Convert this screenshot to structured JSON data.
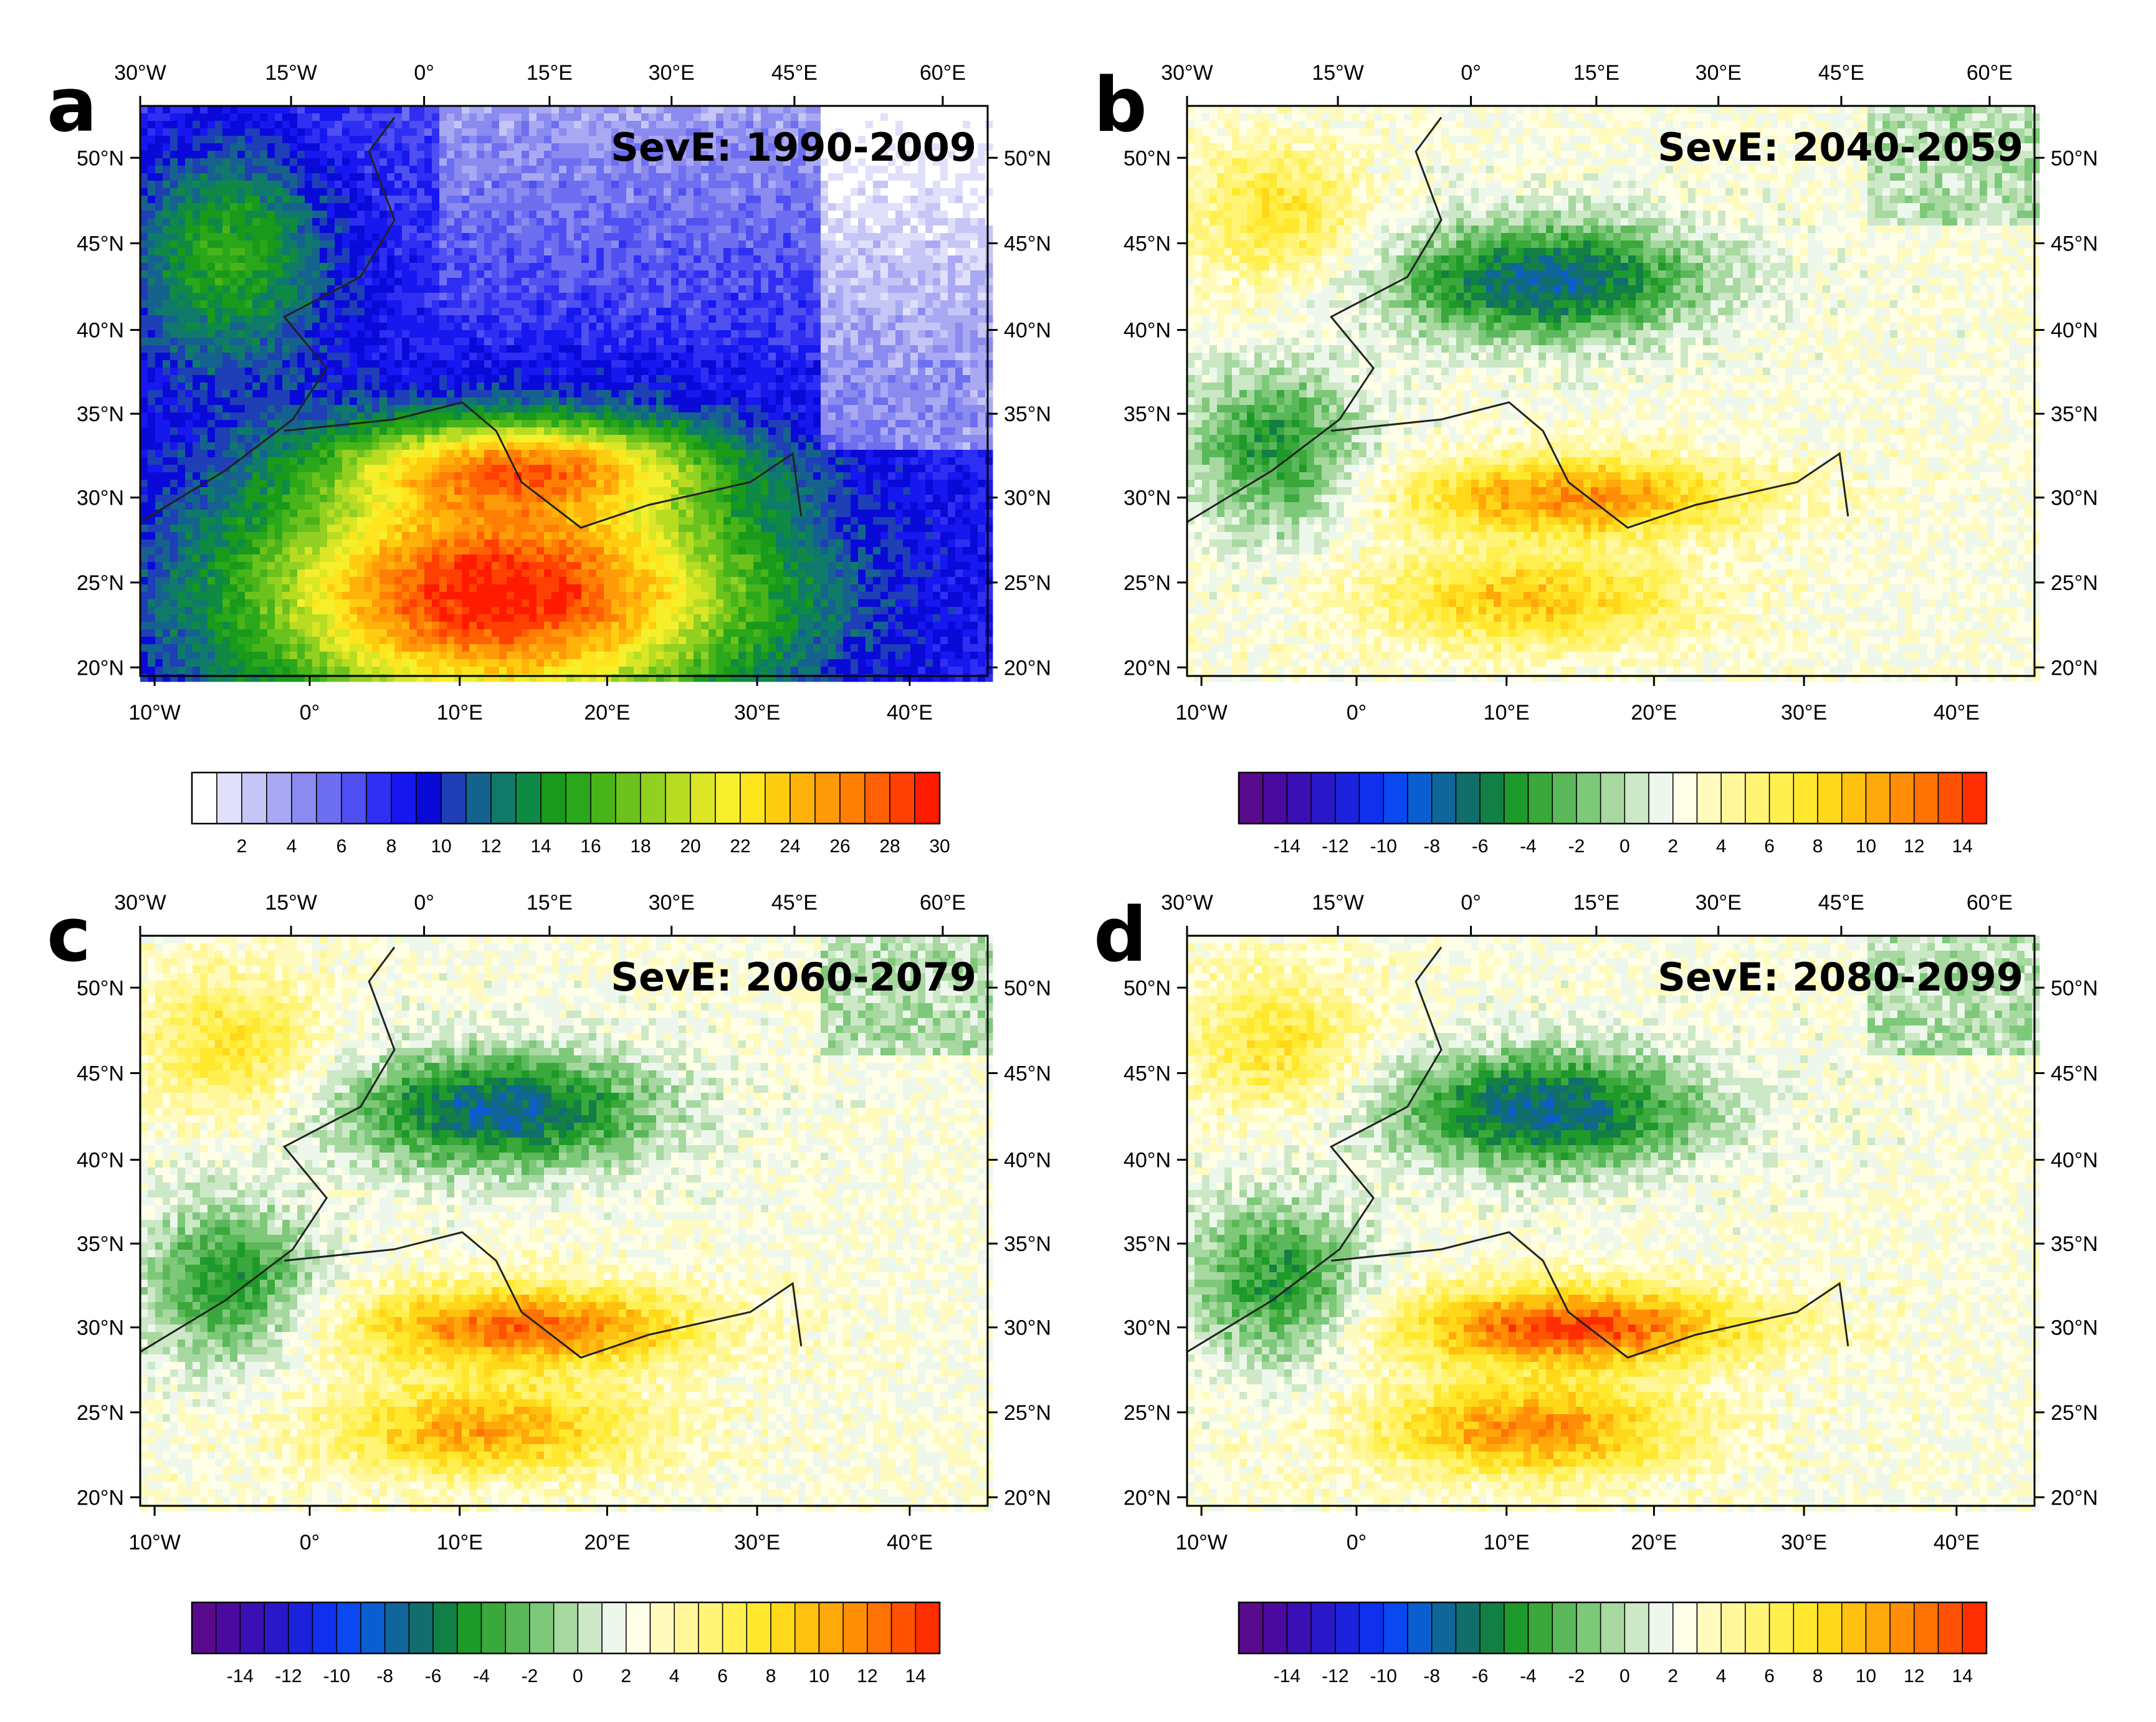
{
  "figure": {
    "panels": [
      {
        "letter": "a",
        "title": "SevE: 1990-2009",
        "colorbar": "abs",
        "top_lon_labels": [
          "30°W",
          "15°W",
          "0°",
          "15°E",
          "30°E",
          "45°E",
          "60°E"
        ],
        "lat_labels": [
          "50°N",
          "45°N",
          "40°N",
          "35°N",
          "30°N",
          "25°N",
          "20°N"
        ],
        "bottom_lon_labels": [
          "10°W",
          "0°",
          "10°E",
          "20°E",
          "30°E",
          "40°E"
        ]
      },
      {
        "letter": "b",
        "title": "SevE: 2040-2059",
        "colorbar": "diff",
        "top_lon_labels": [
          "30°W",
          "15°W",
          "0°",
          "15°E",
          "30°E",
          "45°E",
          "60°E"
        ],
        "lat_labels": [
          "50°N",
          "45°N",
          "40°N",
          "35°N",
          "30°N",
          "25°N",
          "20°N"
        ],
        "bottom_lon_labels": [
          "10°W",
          "0°",
          "10°E",
          "20°E",
          "30°E",
          "40°E"
        ]
      },
      {
        "letter": "c",
        "title": "SevE: 2060-2079",
        "colorbar": "diff",
        "top_lon_labels": [
          "30°W",
          "15°W",
          "0°",
          "15°E",
          "30°E",
          "45°E",
          "60°E"
        ],
        "lat_labels": [
          "50°N",
          "45°N",
          "40°N",
          "35°N",
          "30°N",
          "25°N",
          "20°N"
        ],
        "bottom_lon_labels": [
          "10°W",
          "0°",
          "10°E",
          "20°E",
          "30°E",
          "40°E"
        ]
      },
      {
        "letter": "d",
        "title": "SevE: 2080-2099",
        "colorbar": "diff",
        "top_lon_labels": [
          "30°W",
          "15°W",
          "0°",
          "15°E",
          "30°E",
          "45°E",
          "60°E"
        ],
        "lat_labels": [
          "50°N",
          "45°N",
          "40°N",
          "35°N",
          "30°N",
          "25°N",
          "20°N"
        ],
        "bottom_lon_labels": [
          "10°W",
          "0°",
          "10°E",
          "20°E",
          "30°E",
          "40°E"
        ]
      }
    ],
    "colorbar_abs": {
      "labels": [
        "2",
        "4",
        "6",
        "8",
        "10",
        "12",
        "14",
        "16",
        "18",
        "20",
        "22",
        "24",
        "26",
        "28",
        "30"
      ],
      "colors": [
        "#ffffff",
        "#e0e0fb",
        "#c6c6f6",
        "#a9a9f3",
        "#8a8aef",
        "#6e6ef0",
        "#4f4ff2",
        "#2f2ff3",
        "#1717f0",
        "#0a0ad8",
        "#1e3fb5",
        "#16628f",
        "#107a6a",
        "#0f8a45",
        "#1a9a1a",
        "#2aa71a",
        "#48b41a",
        "#6cc21c",
        "#92d021",
        "#b8dc22",
        "#dae626",
        "#f5f02b",
        "#ffe51e",
        "#ffcd10",
        "#ffb30a",
        "#ff9a08",
        "#ff7f05",
        "#ff6003",
        "#ff4002",
        "#ff1b00"
      ]
    },
    "colorbar_diff": {
      "labels": [
        "-14",
        "-12",
        "-10",
        "-8",
        "-6",
        "-4",
        "-2",
        "0",
        "2",
        "4",
        "6",
        "8",
        "10",
        "12",
        "14"
      ],
      "colors": [
        "#5a0a8c",
        "#4a0aa0",
        "#3a10b4",
        "#2a18c8",
        "#1a22dc",
        "#0f30ee",
        "#0a48f0",
        "#0a5ecf",
        "#10659a",
        "#126e6c",
        "#128044",
        "#1e9a2a",
        "#3aa83a",
        "#5ab85a",
        "#7ec87a",
        "#a6d8a0",
        "#cce8c6",
        "#eef7ec",
        "#ffffe8",
        "#fffbbf",
        "#fff79a",
        "#fff476",
        "#fff050",
        "#ffe82e",
        "#ffd81a",
        "#ffc010",
        "#ffa80a",
        "#ff8e06",
        "#ff7204",
        "#ff5202",
        "#ff2e00"
      ]
    }
  }
}
